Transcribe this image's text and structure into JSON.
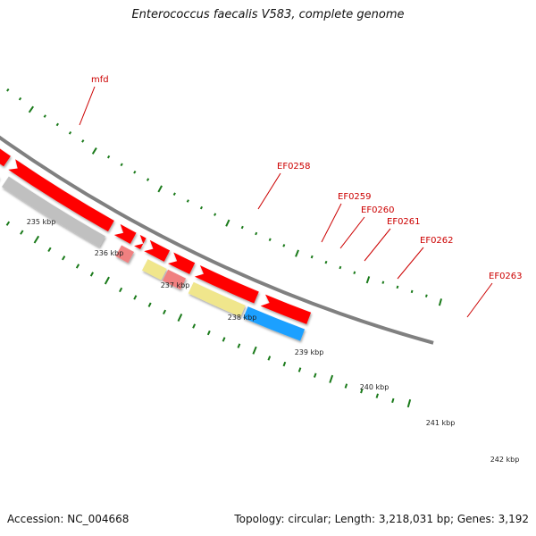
{
  "title": "Enterococcus faecalis V583, complete genome",
  "footer": {
    "accession": "Accession: NC_004668",
    "stats": "Topology: circular; Length: 3,218,031 bp; Genes: 3,192"
  },
  "scale_labels": [
    "235 kbp",
    "236 kbp",
    "237 kbp",
    "238 kbp",
    "239 kbp",
    "240 kbp",
    "241 kbp",
    "242 kbp"
  ],
  "gene_labels": [
    "mfd",
    "EF0258",
    "EF0259",
    "EF0260",
    "EF0261",
    "EF0262",
    "EF0263"
  ],
  "colors": {
    "orange": "#ff8c00",
    "magenta": "#e8207a",
    "gray": "#c0c0c0",
    "pink": "#f08080",
    "khaki": "#f0e68c",
    "cyan": "#1ea0ff",
    "red_cds": "#ff0000",
    "backbone": "#808080",
    "tick_green": "#1a7a1a",
    "label_red": "#cc0000"
  }
}
